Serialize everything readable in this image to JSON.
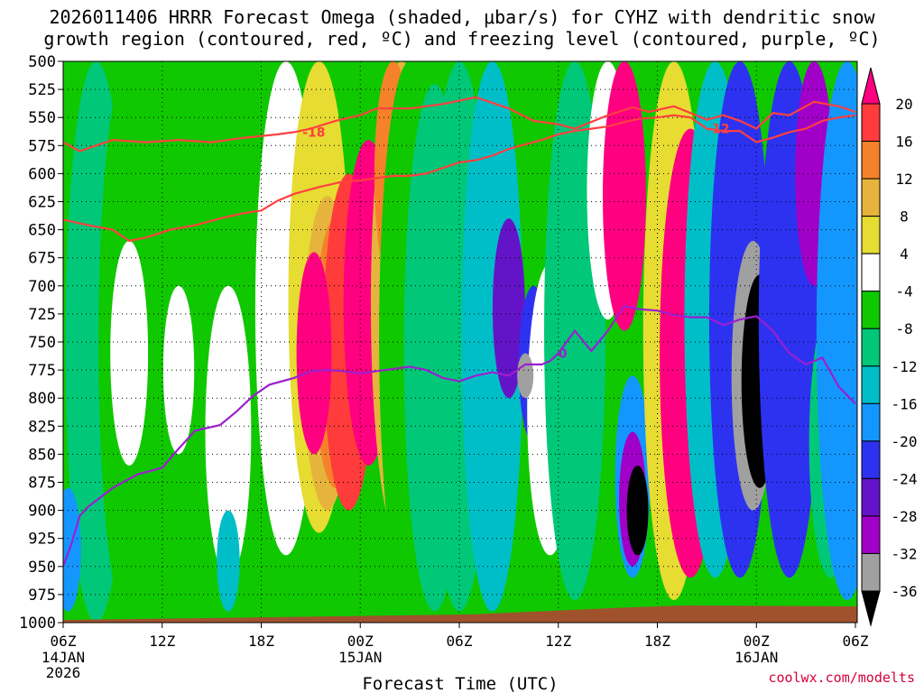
{
  "chart_data": {
    "type": "heatmap",
    "title_line1": "2026011406 HRRR Forecast Omega (shaded, μbar/s) for CYHZ with dendritic snow",
    "title_line2": "growth region (contoured, red, ºC) and freezing level (contoured, purple, ºC)",
    "xlabel": "Forecast Time (UTC)",
    "ylabel": "",
    "credit": "coolwx.com/modelts",
    "x_ticks": [
      "06Z",
      "12Z",
      "18Z",
      "00Z",
      "06Z",
      "12Z",
      "18Z",
      "00Z",
      "06Z"
    ],
    "x_tick_hours": [
      0,
      6,
      12,
      18,
      24,
      30,
      36,
      42,
      48
    ],
    "x_date_labels": [
      {
        "hour": 0,
        "lines": [
          "14JAN",
          "2026"
        ]
      },
      {
        "hour": 18,
        "lines": [
          "15JAN"
        ]
      },
      {
        "hour": 42,
        "lines": [
          "16JAN"
        ]
      }
    ],
    "xlim_hours": [
      0,
      48
    ],
    "y_ticks": [
      500,
      525,
      550,
      575,
      600,
      625,
      650,
      675,
      700,
      725,
      750,
      775,
      800,
      825,
      850,
      875,
      900,
      925,
      950,
      975,
      1000
    ],
    "ylim_hpa": [
      500,
      1000
    ],
    "colorbar_ticks": [
      20,
      16,
      12,
      8,
      4,
      -4,
      -8,
      -12,
      -16,
      -20,
      -24,
      -28,
      -32,
      -36
    ],
    "colorbar_levels": [
      {
        "lo": 20,
        "hi": 24,
        "color": "#ff0080"
      },
      {
        "lo": 16,
        "hi": 20,
        "color": "#ff3b3b"
      },
      {
        "lo": 12,
        "hi": 16,
        "color": "#f5822a"
      },
      {
        "lo": 8,
        "hi": 12,
        "color": "#e6b43c"
      },
      {
        "lo": 4,
        "hi": 8,
        "color": "#e6dc32"
      },
      {
        "lo": -4,
        "hi": 4,
        "color": "#ffffff"
      },
      {
        "lo": -8,
        "hi": -4,
        "color": "#10c800"
      },
      {
        "lo": -12,
        "hi": -8,
        "color": "#00c878"
      },
      {
        "lo": -16,
        "hi": -12,
        "color": "#00bec8"
      },
      {
        "lo": -20,
        "hi": -16,
        "color": "#1496ff"
      },
      {
        "lo": -24,
        "hi": -20,
        "color": "#2d32f0"
      },
      {
        "lo": -28,
        "hi": -24,
        "color": "#6414c8"
      },
      {
        "lo": -32,
        "hi": -28,
        "color": "#a000c8"
      },
      {
        "lo": -36,
        "hi": -32,
        "color": "#a0a0a0"
      },
      {
        "lo": -40,
        "hi": -36,
        "color": "#000000"
      }
    ],
    "omega_cells": [
      {
        "hour": 0.5,
        "p_top": 500,
        "p_bot": 1000,
        "value": -6
      },
      {
        "hour": 2,
        "p_top": 500,
        "p_bot": 1000,
        "value": -10
      },
      {
        "hour": 4,
        "p_top": 500,
        "p_bot": 1000,
        "value": -6
      },
      {
        "hour": 4,
        "p_top": 660,
        "p_bot": 860,
        "value": 0
      },
      {
        "hour": 7,
        "p_top": 500,
        "p_bot": 1000,
        "value": -8
      },
      {
        "hour": 7,
        "p_top": 700,
        "p_bot": 850,
        "value": 0
      },
      {
        "hour": 10,
        "p_top": 500,
        "p_bot": 700,
        "value": -6
      },
      {
        "hour": 10,
        "p_top": 700,
        "p_bot": 960,
        "value": 0
      },
      {
        "hour": 0.3,
        "p_top": 880,
        "p_bot": 990,
        "value": -18
      },
      {
        "hour": 10,
        "p_top": 900,
        "p_bot": 990,
        "value": -14
      },
      {
        "hour": 13.5,
        "p_top": 500,
        "p_bot": 940,
        "value": 2
      },
      {
        "hour": 15.5,
        "p_top": 500,
        "p_bot": 920,
        "value": 6
      },
      {
        "hour": 16,
        "p_top": 620,
        "p_bot": 900,
        "value": 10
      },
      {
        "hour": 16.5,
        "p_top": 640,
        "p_bot": 880,
        "value": 14
      },
      {
        "hour": 17.3,
        "p_top": 600,
        "p_bot": 900,
        "value": 18
      },
      {
        "hour": 15.2,
        "p_top": 670,
        "p_bot": 850,
        "value": 22
      },
      {
        "hour": 18.5,
        "p_top": 570,
        "p_bot": 860,
        "value": 22
      },
      {
        "hour": 20.5,
        "p_top": 500,
        "p_bot": 930,
        "value": 8
      },
      {
        "hour": 20,
        "p_top": 500,
        "p_bot": 700,
        "value": 12
      },
      {
        "hour": 21,
        "p_top": 500,
        "p_bot": 990,
        "value": -8
      },
      {
        "hour": 22.5,
        "p_top": 520,
        "p_bot": 990,
        "value": -12
      },
      {
        "hour": 24,
        "p_top": 500,
        "p_bot": 990,
        "value": -10
      },
      {
        "hour": 26,
        "p_top": 500,
        "p_bot": 990,
        "value": -14
      },
      {
        "hour": 27,
        "p_top": 640,
        "p_bot": 800,
        "value": -26
      },
      {
        "hour": 28.5,
        "p_top": 700,
        "p_bot": 840,
        "value": -22
      },
      {
        "hour": 29.5,
        "p_top": 680,
        "p_bot": 940,
        "value": 0
      },
      {
        "hour": 28,
        "p_top": 760,
        "p_bot": 800,
        "value": -34
      },
      {
        "hour": 31,
        "p_top": 500,
        "p_bot": 980,
        "value": -12
      },
      {
        "hour": 33,
        "p_top": 500,
        "p_bot": 730,
        "value": 0
      },
      {
        "hour": 34,
        "p_top": 500,
        "p_bot": 740,
        "value": 22
      },
      {
        "hour": 34.5,
        "p_top": 780,
        "p_bot": 960,
        "value": -20
      },
      {
        "hour": 34.5,
        "p_top": 830,
        "p_bot": 950,
        "value": -30
      },
      {
        "hour": 34.8,
        "p_top": 860,
        "p_bot": 940,
        "value": -38
      },
      {
        "hour": 37,
        "p_top": 500,
        "p_bot": 980,
        "value": 4
      },
      {
        "hour": 38,
        "p_top": 560,
        "p_bot": 960,
        "value": 22
      },
      {
        "hour": 39.5,
        "p_top": 500,
        "p_bot": 960,
        "value": -14
      },
      {
        "hour": 41,
        "p_top": 500,
        "p_bot": 960,
        "value": -22
      },
      {
        "hour": 41.8,
        "p_top": 660,
        "p_bot": 900,
        "value": -34
      },
      {
        "hour": 42.2,
        "p_top": 690,
        "p_bot": 880,
        "value": -38
      },
      {
        "hour": 44,
        "p_top": 500,
        "p_bot": 960,
        "value": -24
      },
      {
        "hour": 45.5,
        "p_top": 500,
        "p_bot": 700,
        "value": -30
      },
      {
        "hour": 46.5,
        "p_top": 720,
        "p_bot": 960,
        "value": -12
      },
      {
        "hour": 47.5,
        "p_top": 500,
        "p_bot": 980,
        "value": -18
      }
    ],
    "series": [
      {
        "name": "-18 C isotherm",
        "color": "#ff4040",
        "label": "-18",
        "label_hour": 14.5,
        "points": [
          [
            0,
            572
          ],
          [
            1,
            580
          ],
          [
            3,
            570
          ],
          [
            5,
            572
          ],
          [
            7,
            570
          ],
          [
            9,
            572
          ],
          [
            11,
            568
          ],
          [
            13,
            565
          ],
          [
            14,
            563
          ],
          [
            15,
            560
          ],
          [
            16.5,
            553
          ],
          [
            18,
            548
          ],
          [
            19,
            542
          ],
          [
            21,
            542
          ],
          [
            23,
            538
          ],
          [
            25,
            532
          ],
          [
            27,
            542
          ],
          [
            28.5,
            553
          ],
          [
            30,
            556
          ],
          [
            31,
            560
          ],
          [
            33,
            548
          ],
          [
            34.5,
            541
          ],
          [
            35.5,
            545
          ],
          [
            37,
            540
          ],
          [
            38,
            546
          ],
          [
            39,
            552
          ],
          [
            40,
            548
          ],
          [
            41,
            553
          ],
          [
            42,
            560
          ],
          [
            43,
            546
          ],
          [
            44,
            548
          ],
          [
            45.5,
            536
          ],
          [
            47,
            540
          ],
          [
            48,
            545
          ]
        ]
      },
      {
        "name": "-12 C isotherm",
        "color": "#ff4040",
        "label": "-12",
        "label_hour": 39,
        "points": [
          [
            0,
            641
          ],
          [
            1.5,
            646
          ],
          [
            3,
            650
          ],
          [
            4,
            660
          ],
          [
            5,
            657
          ],
          [
            6.5,
            650
          ],
          [
            8,
            646
          ],
          [
            9.5,
            640
          ],
          [
            11,
            635
          ],
          [
            12,
            633
          ],
          [
            13,
            624
          ],
          [
            14,
            618
          ],
          [
            15.5,
            612
          ],
          [
            17,
            607
          ],
          [
            18,
            606
          ],
          [
            19,
            604
          ],
          [
            20,
            602
          ],
          [
            21,
            602
          ],
          [
            22,
            600
          ],
          [
            23,
            595
          ],
          [
            24,
            590
          ],
          [
            25,
            588
          ],
          [
            26,
            584
          ],
          [
            27,
            578
          ],
          [
            28,
            574
          ],
          [
            29,
            570
          ],
          [
            30,
            565
          ],
          [
            31,
            562
          ],
          [
            32,
            560
          ],
          [
            33,
            558
          ],
          [
            34,
            554
          ],
          [
            35,
            551
          ],
          [
            36,
            550
          ],
          [
            37,
            548
          ],
          [
            38,
            550
          ],
          [
            39,
            560
          ],
          [
            40,
            562
          ],
          [
            41,
            562
          ],
          [
            42,
            572
          ],
          [
            43,
            568
          ],
          [
            44,
            563
          ],
          [
            45,
            560
          ],
          [
            46,
            553
          ],
          [
            47,
            550
          ],
          [
            48,
            548
          ]
        ]
      },
      {
        "name": "0 C freezing level",
        "color": "#9b1fd0",
        "label": "0",
        "label_hour": 30,
        "points": [
          [
            0,
            950
          ],
          [
            0.5,
            930
          ],
          [
            1,
            905
          ],
          [
            1.5,
            897
          ],
          [
            3,
            880
          ],
          [
            4.5,
            868
          ],
          [
            6,
            862
          ],
          [
            7,
            845
          ],
          [
            8,
            829
          ],
          [
            9.5,
            824
          ],
          [
            10.5,
            812
          ],
          [
            11.5,
            798
          ],
          [
            12.5,
            788
          ],
          [
            14,
            782
          ],
          [
            15,
            776
          ],
          [
            16,
            775
          ],
          [
            17,
            776
          ],
          [
            18,
            778
          ],
          [
            19,
            776
          ],
          [
            20,
            774
          ],
          [
            21,
            772
          ],
          [
            22,
            775
          ],
          [
            23,
            782
          ],
          [
            24,
            785
          ],
          [
            25,
            780
          ],
          [
            26,
            777
          ],
          [
            27,
            780
          ],
          [
            28,
            770
          ],
          [
            29,
            770
          ],
          [
            29.5,
            767
          ],
          [
            30,
            760
          ],
          [
            31,
            740
          ],
          [
            32,
            758
          ],
          [
            33,
            740
          ],
          [
            34,
            718
          ],
          [
            35,
            721
          ],
          [
            36,
            722
          ],
          [
            37,
            726
          ],
          [
            38,
            728
          ],
          [
            39,
            728
          ],
          [
            40,
            735
          ],
          [
            41,
            730
          ],
          [
            42,
            727
          ],
          [
            43,
            740
          ],
          [
            44,
            760
          ],
          [
            45,
            770
          ],
          [
            46,
            764
          ],
          [
            47,
            790
          ],
          [
            48,
            805
          ]
        ]
      }
    ],
    "terrain_color": "#a0522d"
  }
}
